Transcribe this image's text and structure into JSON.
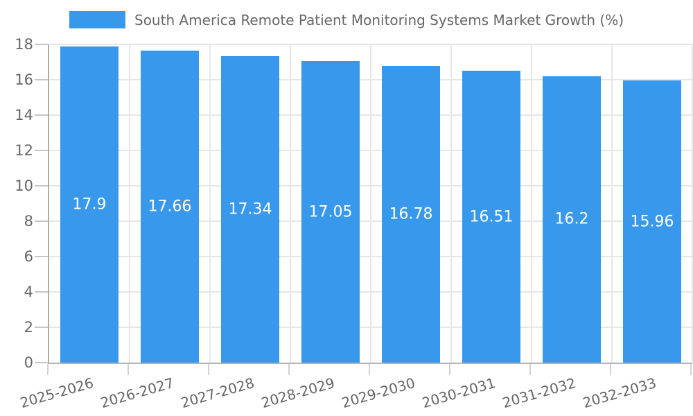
{
  "legend": {
    "label": "South America Remote Patient Monitoring Systems Market Growth (%)"
  },
  "chart_data": {
    "type": "bar",
    "title": "South America Remote Patient Monitoring Systems Market Growth (%)",
    "categories": [
      "2025-2026",
      "2026-2027",
      "2027-2028",
      "2028-2029",
      "2029-2030",
      "2030-2031",
      "2031-2032",
      "2032-2033"
    ],
    "values": [
      17.9,
      17.66,
      17.34,
      17.05,
      16.78,
      16.51,
      16.2,
      15.96
    ],
    "value_labels": [
      "17.9",
      "17.66",
      "17.34",
      "17.05",
      "16.78",
      "16.51",
      "16.2",
      "15.96"
    ],
    "xlabel": "",
    "ylabel": "",
    "ylim": [
      0,
      18
    ],
    "yticks": [
      0,
      2,
      4,
      6,
      8,
      10,
      12,
      14,
      16,
      18
    ],
    "grid": true,
    "legend_position": "top-center",
    "bar_value_label_position": "center",
    "xtick_rotation_deg": -16
  },
  "colors": {
    "bar": "#3898ec",
    "text": "#666666",
    "gridline": "#e6e6e6",
    "axis": "#ababab",
    "bar_label_text": "#ffffff",
    "background": "#ffffff"
  }
}
